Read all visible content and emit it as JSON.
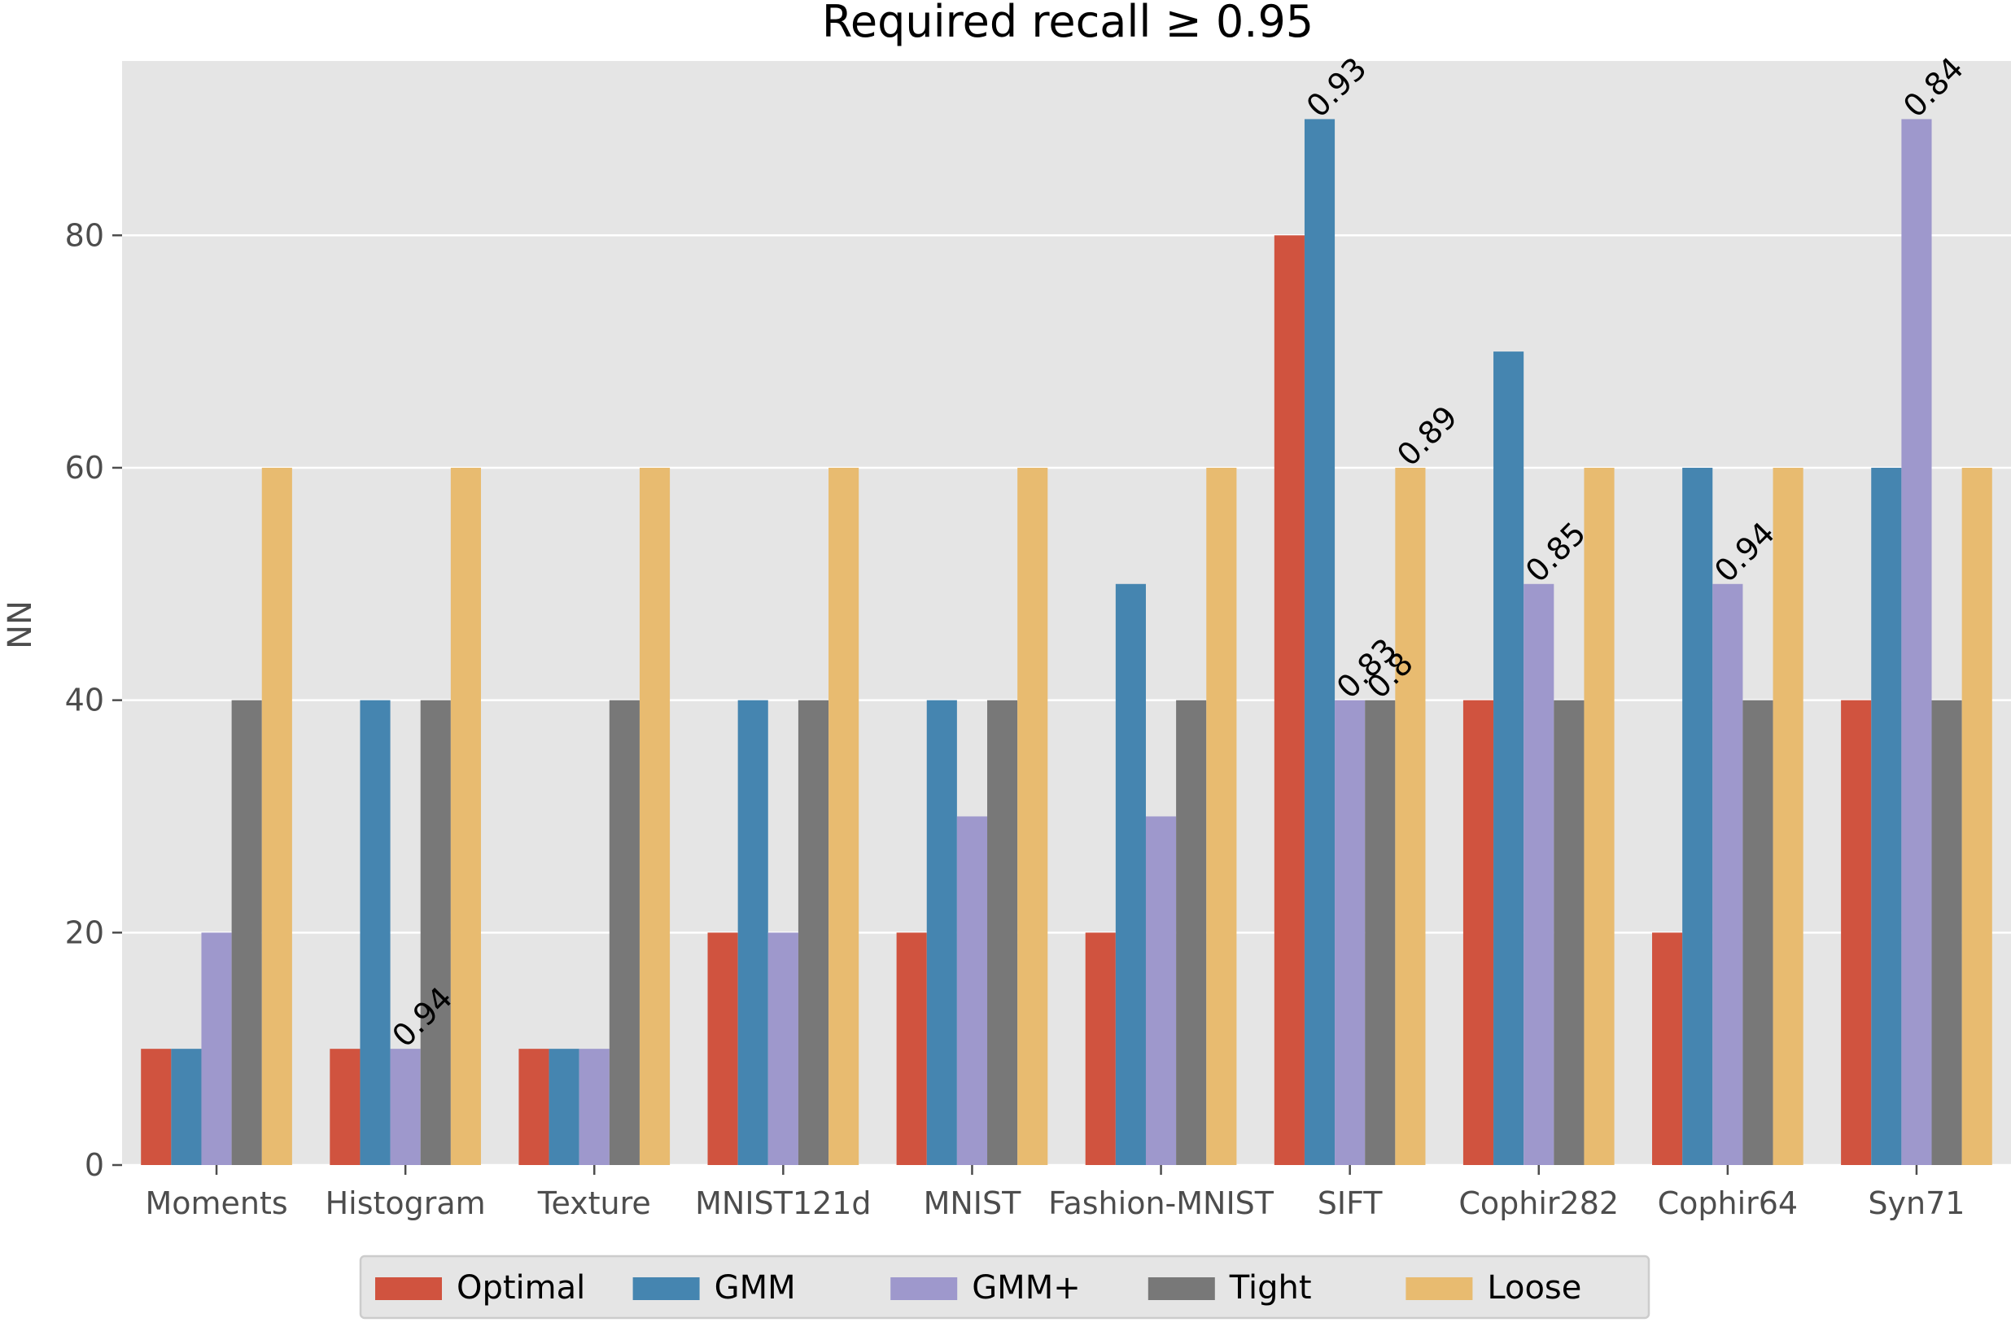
{
  "chart_data": {
    "type": "bar",
    "title": "Required recall ≥ 0.95",
    "xlabel": "",
    "ylabel": "NN",
    "ylim": [
      0,
      95
    ],
    "yticks": [
      0,
      20,
      40,
      60,
      80
    ],
    "grid": true,
    "legend_position": "bottom-center",
    "categories": [
      "Moments",
      "Histogram",
      "Texture",
      "MNIST121d",
      "MNIST",
      "Fashion-MNIST",
      "SIFT",
      "Cophir282",
      "Cophir64",
      "Syn71"
    ],
    "series": [
      {
        "name": "Optimal",
        "color": "#d0533f",
        "values": [
          10,
          10,
          10,
          20,
          20,
          20,
          80,
          40,
          20,
          40
        ]
      },
      {
        "name": "GMM",
        "color": "#4585b0",
        "values": [
          10,
          40,
          10,
          40,
          40,
          50,
          90,
          70,
          60,
          60
        ]
      },
      {
        "name": "GMM+",
        "color": "#9e98cc",
        "values": [
          20,
          10,
          10,
          20,
          30,
          30,
          40,
          50,
          50,
          90
        ]
      },
      {
        "name": "Tight",
        "color": "#787878",
        "values": [
          40,
          40,
          40,
          40,
          40,
          40,
          40,
          40,
          40,
          40
        ]
      },
      {
        "name": "Loose",
        "color": "#e8bb70",
        "values": [
          60,
          60,
          60,
          60,
          60,
          60,
          60,
          60,
          60,
          60
        ]
      }
    ],
    "annotations": [
      {
        "category": "Histogram",
        "series": "GMM+",
        "text": "0.94"
      },
      {
        "category": "SIFT",
        "series": "GMM",
        "text": "0.93"
      },
      {
        "category": "SIFT",
        "series": "GMM+",
        "text": "0.83"
      },
      {
        "category": "SIFT",
        "series": "Tight",
        "text": "0.8"
      },
      {
        "category": "SIFT",
        "series": "Loose",
        "text": "0.89"
      },
      {
        "category": "Cophir282",
        "series": "GMM+",
        "text": "0.85"
      },
      {
        "category": "Cophir64",
        "series": "GMM+",
        "text": "0.94"
      },
      {
        "category": "Syn71",
        "series": "GMM+",
        "text": "0.84"
      }
    ],
    "colors": {
      "plot_background": "#e5e5e5",
      "grid": "#ffffff",
      "tick": "#4d4d4d"
    }
  }
}
